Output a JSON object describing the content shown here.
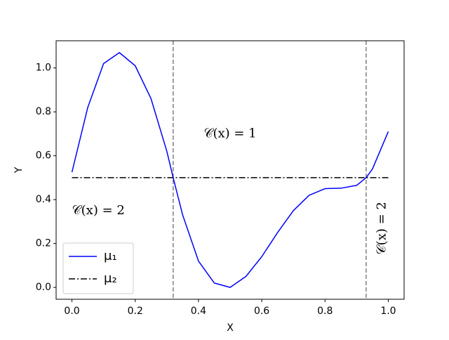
{
  "chart_data": {
    "type": "line",
    "xlabel": "X",
    "ylabel": "Y",
    "x": [
      0,
      0.05,
      0.1,
      0.15,
      0.2,
      0.25,
      0.3,
      0.32,
      0.35,
      0.4,
      0.45,
      0.5,
      0.55,
      0.6,
      0.65,
      0.7,
      0.75,
      0.8,
      0.85,
      0.9,
      0.93,
      0.95,
      1.0
    ],
    "series": [
      {
        "name": "μ₁",
        "color": "#0000ff",
        "style": "solid",
        "x": [
          0,
          0.05,
          0.1,
          0.15,
          0.2,
          0.25,
          0.3,
          0.32,
          0.35,
          0.4,
          0.45,
          0.5,
          0.55,
          0.6,
          0.65,
          0.7,
          0.75,
          0.8,
          0.85,
          0.9,
          0.93,
          0.95,
          1.0
        ],
        "values": [
          0.525,
          0.82,
          1.02,
          1.07,
          1.01,
          0.86,
          0.62,
          0.5,
          0.33,
          0.12,
          0.02,
          0.0,
          0.05,
          0.14,
          0.25,
          0.35,
          0.42,
          0.45,
          0.452,
          0.465,
          0.5,
          0.54,
          0.71
        ]
      },
      {
        "name": "μ₂",
        "color": "#000000",
        "style": "dashdot",
        "x": [
          0,
          1
        ],
        "values": [
          0.5,
          0.5
        ]
      }
    ],
    "vlines": [
      0.32,
      0.93
    ],
    "vline_color": "#808080",
    "annotations": [
      {
        "text": "𝒞(x) = 1",
        "x": 0.5,
        "y": 0.7,
        "rotation": 0
      },
      {
        "text": "𝒞(x) = 2",
        "x": 0.0,
        "y": 0.35,
        "rotation": 0
      },
      {
        "text": "𝒞(x) = 2",
        "x": 0.98,
        "y": 0.27,
        "rotation": -90
      }
    ],
    "xlim": [
      -0.05,
      1.05
    ],
    "ylim": [
      -0.054,
      1.124
    ],
    "xticks": [
      {
        "value": 0,
        "label": "0.0"
      },
      0.2,
      0.4,
      0.6,
      0.8,
      {
        "value": 1,
        "label": "1.0"
      }
    ],
    "yticks": [
      {
        "value": 0,
        "label": "0.0"
      },
      0.2,
      0.4,
      0.6,
      0.8,
      {
        "value": 1,
        "label": "1.0"
      }
    ],
    "legend": "lower left"
  }
}
